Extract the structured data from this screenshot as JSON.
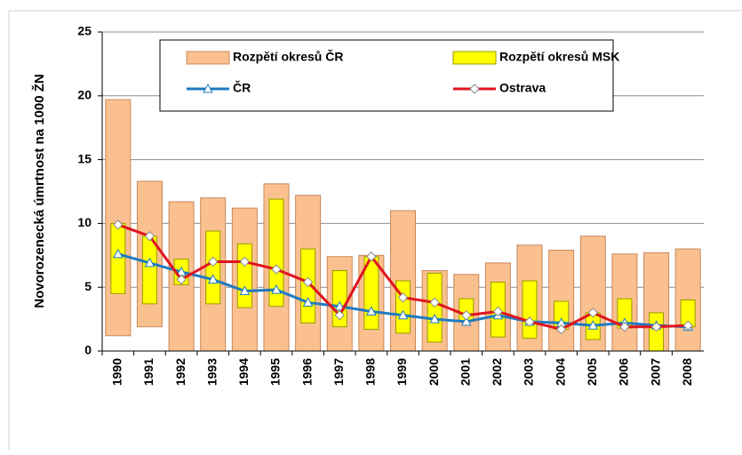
{
  "chart_data": {
    "type": "range-bar-line",
    "y_label": "Novorozenecká úmrtnost na 1000 ŽN",
    "categories": [
      "1990",
      "1991",
      "1992",
      "1993",
      "1994",
      "1995",
      "1996",
      "1997",
      "1998",
      "1999",
      "2000",
      "2001",
      "2002",
      "2003",
      "2004",
      "2005",
      "2006",
      "2007",
      "2008"
    ],
    "ylim": [
      0,
      25
    ],
    "yticks": [
      0,
      5,
      10,
      15,
      20,
      25
    ],
    "grid": true,
    "series": [
      {
        "name": "Rozpětí okresů ČR",
        "kind": "range",
        "color": "#fac090",
        "low": [
          1.2,
          1.9,
          0,
          0,
          0,
          0,
          0,
          0,
          0,
          0,
          0,
          0,
          0,
          0,
          0,
          0,
          0,
          0,
          0
        ],
        "high": [
          19.7,
          13.3,
          11.7,
          12.0,
          11.2,
          13.1,
          12.2,
          7.4,
          7.5,
          11.0,
          6.3,
          6.0,
          6.9,
          8.3,
          7.9,
          9.0,
          7.6,
          7.7,
          8.0
        ]
      },
      {
        "name": "Rozpětí okresů MSK",
        "kind": "range",
        "color": "#ffff00",
        "low": [
          4.5,
          3.7,
          5.2,
          3.7,
          3.4,
          3.5,
          2.2,
          1.9,
          1.7,
          1.4,
          0.7,
          2.4,
          1.1,
          1.0,
          1.7,
          0.9,
          1.8,
          0,
          1.9
        ],
        "high": [
          10.0,
          9.0,
          7.2,
          9.4,
          8.4,
          11.9,
          8.0,
          6.3,
          7.4,
          5.5,
          6.1,
          4.1,
          5.4,
          5.5,
          3.9,
          3.0,
          4.1,
          3.0,
          4.0
        ]
      },
      {
        "name": "ČR",
        "kind": "line",
        "color": "#1f7bc1",
        "marker": "triangle",
        "values": [
          7.6,
          6.9,
          6.2,
          5.6,
          4.7,
          4.8,
          3.8,
          3.5,
          3.1,
          2.8,
          2.5,
          2.3,
          2.8,
          2.3,
          2.2,
          2.0,
          2.2,
          2.0,
          1.9
        ]
      },
      {
        "name": "Ostrava",
        "kind": "line",
        "color": "#e0141e",
        "marker": "diamond",
        "values": [
          9.9,
          9.0,
          5.6,
          7.0,
          7.0,
          6.4,
          5.4,
          2.8,
          7.4,
          4.2,
          3.8,
          2.8,
          3.1,
          2.3,
          1.7,
          3.0,
          1.9,
          1.9,
          2.0
        ]
      }
    ]
  }
}
